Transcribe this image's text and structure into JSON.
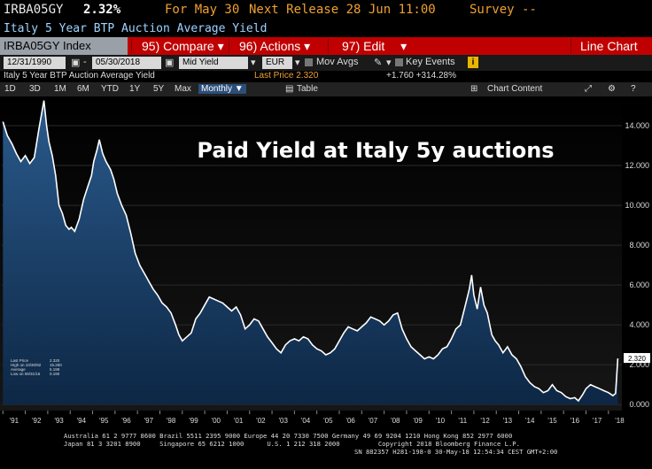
{
  "ticker_bar": {
    "ticker": "IRBA05GY",
    "value": "2.32%",
    "for_label": "For May 30",
    "next_release": "Next Release 28 Jun 11:00",
    "survey": "Survey --"
  },
  "title": "Italy 5 Year BTP Auction Average Yield",
  "toolbar": {
    "security": "IRBA05GY Index",
    "compare": "95) Compare",
    "actions": "96) Actions",
    "edit": "97) Edit",
    "chart_type": "Line Chart"
  },
  "controls": {
    "start_date": "12/31/1990",
    "end_date": "05/30/2018",
    "field": "Mid Yield",
    "currency": "EUR",
    "mov_avgs": "Mov Avgs",
    "key_events": "Key Events",
    "info": "i"
  },
  "subtitle": {
    "name": "Italy 5 Year BTP Auction Average Yield",
    "last_price": "Last Price 2.320",
    "change": "+1.760 +314.28%"
  },
  "periods": {
    "items": [
      "1D",
      "3D",
      "1M",
      "6M",
      "YTD",
      "1Y",
      "5Y",
      "Max"
    ],
    "frequency": "Monthly",
    "table": "Table",
    "chart_content": "Chart Content"
  },
  "chart_data": {
    "type": "area",
    "annotation": "Paid Yield at Italy 5y auctions",
    "x_tick_labels": [
      "'91",
      "'92",
      "'93",
      "'94",
      "'95",
      "'96",
      "'97",
      "'98",
      "'99",
      "'00",
      "'01",
      "'02",
      "'03",
      "'04",
      "'05",
      "'06",
      "'07",
      "'08",
      "'09",
      "'10",
      "'11",
      "'12",
      "'13",
      "'14",
      "'15",
      "'16",
      "'17",
      "'18"
    ],
    "y_ticks": [
      0,
      2,
      4,
      6,
      8,
      10,
      12,
      14
    ],
    "y_tick_labels": [
      "0.000",
      "2.000",
      "4.000",
      "6.000",
      "8.000",
      "10.000",
      "12.000",
      "14.000"
    ],
    "ylim": [
      -0.3,
      15.2
    ],
    "xlim": [
      1990.95,
      2018.6
    ],
    "last_value_label": "2.320",
    "legend": [
      {
        "label": "Last Price",
        "value": "2.320"
      },
      {
        "label": "High on 10/30/92",
        "value": "15.260"
      },
      {
        "label": "Average",
        "value": "5.199"
      },
      {
        "label": "Low on 08/31/16",
        "value": "0.190"
      }
    ],
    "series": [
      {
        "name": "IRBA05GY Index",
        "points": [
          [
            1991.0,
            14.2
          ],
          [
            1991.2,
            13.5
          ],
          [
            1991.4,
            13.1
          ],
          [
            1991.6,
            12.6
          ],
          [
            1991.8,
            12.2
          ],
          [
            1992.0,
            12.5
          ],
          [
            1992.2,
            12.1
          ],
          [
            1992.4,
            12.4
          ],
          [
            1992.6,
            13.8
          ],
          [
            1992.83,
            15.26
          ],
          [
            1992.95,
            14.0
          ],
          [
            1993.05,
            13.2
          ],
          [
            1993.2,
            12.5
          ],
          [
            1993.35,
            11.5
          ],
          [
            1993.5,
            10.0
          ],
          [
            1993.65,
            9.6
          ],
          [
            1993.8,
            9.0
          ],
          [
            1993.95,
            8.8
          ],
          [
            1994.05,
            8.9
          ],
          [
            1994.2,
            8.7
          ],
          [
            1994.4,
            9.3
          ],
          [
            1994.6,
            10.3
          ],
          [
            1994.8,
            11.0
          ],
          [
            1994.95,
            11.5
          ],
          [
            1995.05,
            12.2
          ],
          [
            1995.2,
            12.8
          ],
          [
            1995.3,
            13.3
          ],
          [
            1995.45,
            12.6
          ],
          [
            1995.6,
            12.2
          ],
          [
            1995.8,
            11.8
          ],
          [
            1995.95,
            11.3
          ],
          [
            1996.1,
            10.6
          ],
          [
            1996.3,
            10.0
          ],
          [
            1996.5,
            9.5
          ],
          [
            1996.7,
            8.6
          ],
          [
            1996.9,
            7.6
          ],
          [
            1997.1,
            7.0
          ],
          [
            1997.3,
            6.6
          ],
          [
            1997.5,
            6.2
          ],
          [
            1997.7,
            5.8
          ],
          [
            1997.9,
            5.5
          ],
          [
            1998.1,
            5.1
          ],
          [
            1998.3,
            4.9
          ],
          [
            1998.5,
            4.6
          ],
          [
            1998.7,
            4.0
          ],
          [
            1998.85,
            3.5
          ],
          [
            1999.0,
            3.2
          ],
          [
            1999.2,
            3.4
          ],
          [
            1999.4,
            3.6
          ],
          [
            1999.6,
            4.3
          ],
          [
            1999.8,
            4.6
          ],
          [
            2000.0,
            5.0
          ],
          [
            2000.2,
            5.4
          ],
          [
            2000.4,
            5.3
          ],
          [
            2000.6,
            5.2
          ],
          [
            2000.8,
            5.1
          ],
          [
            2001.0,
            4.9
          ],
          [
            2001.2,
            4.7
          ],
          [
            2001.4,
            4.9
          ],
          [
            2001.6,
            4.5
          ],
          [
            2001.8,
            3.8
          ],
          [
            2002.0,
            4.0
          ],
          [
            2002.2,
            4.3
          ],
          [
            2002.4,
            4.2
          ],
          [
            2002.6,
            3.8
          ],
          [
            2002.8,
            3.4
          ],
          [
            2003.0,
            3.1
          ],
          [
            2003.2,
            2.8
          ],
          [
            2003.4,
            2.6
          ],
          [
            2003.6,
            3.0
          ],
          [
            2003.8,
            3.2
          ],
          [
            2004.0,
            3.3
          ],
          [
            2004.2,
            3.2
          ],
          [
            2004.4,
            3.4
          ],
          [
            2004.6,
            3.3
          ],
          [
            2004.8,
            3.0
          ],
          [
            2005.0,
            2.8
          ],
          [
            2005.2,
            2.7
          ],
          [
            2005.4,
            2.5
          ],
          [
            2005.6,
            2.6
          ],
          [
            2005.8,
            2.8
          ],
          [
            2006.0,
            3.2
          ],
          [
            2006.2,
            3.6
          ],
          [
            2006.4,
            3.9
          ],
          [
            2006.6,
            3.8
          ],
          [
            2006.8,
            3.7
          ],
          [
            2007.0,
            3.9
          ],
          [
            2007.2,
            4.1
          ],
          [
            2007.4,
            4.4
          ],
          [
            2007.6,
            4.3
          ],
          [
            2007.8,
            4.2
          ],
          [
            2008.0,
            4.0
          ],
          [
            2008.2,
            4.2
          ],
          [
            2008.4,
            4.5
          ],
          [
            2008.6,
            4.6
          ],
          [
            2008.8,
            3.8
          ],
          [
            2009.0,
            3.3
          ],
          [
            2009.2,
            2.9
          ],
          [
            2009.4,
            2.7
          ],
          [
            2009.6,
            2.5
          ],
          [
            2009.8,
            2.3
          ],
          [
            2010.0,
            2.4
          ],
          [
            2010.2,
            2.3
          ],
          [
            2010.4,
            2.5
          ],
          [
            2010.6,
            2.8
          ],
          [
            2010.8,
            2.9
          ],
          [
            2011.0,
            3.3
          ],
          [
            2011.2,
            3.8
          ],
          [
            2011.4,
            4.0
          ],
          [
            2011.6,
            4.9
          ],
          [
            2011.8,
            5.8
          ],
          [
            2011.9,
            6.5
          ],
          [
            2012.0,
            5.5
          ],
          [
            2012.15,
            4.8
          ],
          [
            2012.3,
            5.9
          ],
          [
            2012.45,
            5.0
          ],
          [
            2012.6,
            4.6
          ],
          [
            2012.8,
            3.5
          ],
          [
            2012.95,
            3.2
          ],
          [
            2013.1,
            3.0
          ],
          [
            2013.3,
            2.6
          ],
          [
            2013.5,
            2.9
          ],
          [
            2013.7,
            2.5
          ],
          [
            2013.9,
            2.3
          ],
          [
            2014.1,
            1.9
          ],
          [
            2014.3,
            1.4
          ],
          [
            2014.5,
            1.1
          ],
          [
            2014.7,
            0.9
          ],
          [
            2014.9,
            0.8
          ],
          [
            2015.1,
            0.6
          ],
          [
            2015.3,
            0.7
          ],
          [
            2015.5,
            1.0
          ],
          [
            2015.7,
            0.7
          ],
          [
            2015.9,
            0.6
          ],
          [
            2016.1,
            0.4
          ],
          [
            2016.3,
            0.3
          ],
          [
            2016.5,
            0.35
          ],
          [
            2016.66,
            0.19
          ],
          [
            2016.85,
            0.5
          ],
          [
            2017.0,
            0.8
          ],
          [
            2017.2,
            1.0
          ],
          [
            2017.4,
            0.9
          ],
          [
            2017.6,
            0.8
          ],
          [
            2017.8,
            0.7
          ],
          [
            2018.0,
            0.6
          ],
          [
            2018.2,
            0.45
          ],
          [
            2018.32,
            0.56
          ],
          [
            2018.42,
            2.32
          ]
        ]
      }
    ]
  },
  "footer": {
    "line1": "Australia 61 2 9777 8600 Brazil 5511 2395 9000 Europe 44 20 7330 7500 Germany 49 69 9204 1210 Hong Kong 852 2977 6000",
    "line2": "Japan 81 3 3201 8900     Singapore 65 6212 1000      U.S. 1 212 318 2000          Copyright 2018 Bloomberg Finance L.P.",
    "line3": "SN 882357 H281-198-0 30-May-18 12:54:34 CEST GMT+2:00"
  }
}
